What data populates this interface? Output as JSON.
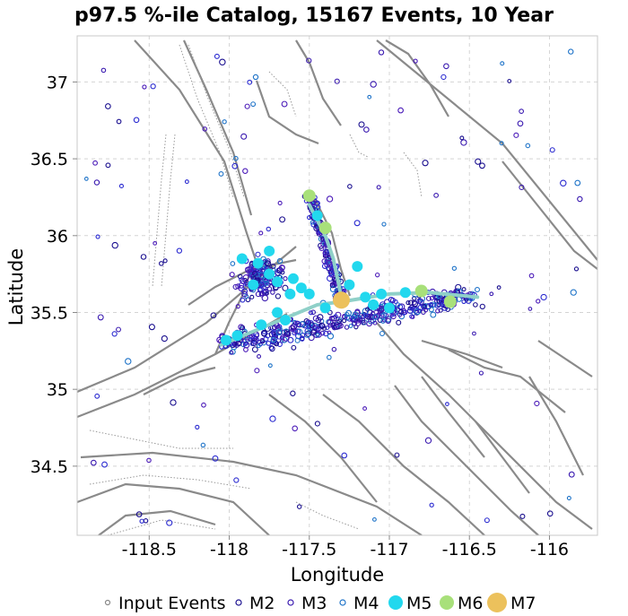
{
  "chart_data": {
    "type": "scatter",
    "title": "p97.5 %-ile Catalog, 15167 Events, 10 Year",
    "xlabel": "Longitude",
    "ylabel": "Latitude",
    "xlim": [
      -118.95,
      -115.7
    ],
    "ylim": [
      34.05,
      37.3
    ],
    "xticks": [
      -118.5,
      -118,
      -117.5,
      -117,
      -116.5,
      -116
    ],
    "xtick_labels": [
      "-118.5",
      "-118",
      "-117.5",
      "-117",
      "-116.5",
      "-116"
    ],
    "yticks": [
      34.5,
      35,
      35.5,
      36,
      36.5,
      37
    ],
    "ytick_labels": [
      "34.5",
      "35",
      "35.5",
      "36",
      "36.5",
      "37"
    ],
    "grid": true,
    "legend_position": "bottom",
    "legend": [
      {
        "label": "Input Events",
        "color": "#888888",
        "marker": "small-open-circle"
      },
      {
        "label": "M2",
        "color": "#1a0f8f",
        "marker": "open-circle"
      },
      {
        "label": "M3",
        "color": "#3a1ab0",
        "marker": "open-circle"
      },
      {
        "label": "M4",
        "color": "#1e73c8",
        "marker": "open-circle"
      },
      {
        "label": "M5",
        "color": "#22d8ee",
        "marker": "filled-circle"
      },
      {
        "label": "M6",
        "color": "#a8e07a",
        "marker": "filled-circle"
      },
      {
        "label": "M7",
        "color": "#ecc15c",
        "marker": "filled-circle"
      }
    ],
    "rupture_trace": {
      "color": "#8fd0c8",
      "segments": [
        [
          [
            -118.05,
            35.29
          ],
          [
            -117.75,
            35.42
          ],
          [
            -117.45,
            35.55
          ],
          [
            -117.3,
            35.57
          ],
          [
            -117.0,
            35.62
          ],
          [
            -116.75,
            35.63
          ],
          [
            -116.45,
            35.6
          ]
        ],
        [
          [
            -117.5,
            36.2
          ],
          [
            -117.45,
            36.1
          ],
          [
            -117.4,
            36.0
          ],
          [
            -117.35,
            35.85
          ],
          [
            -117.3,
            35.6
          ]
        ]
      ]
    },
    "series": [
      {
        "name": "M7",
        "color": "#ecc15c",
        "points": [
          [
            -117.3,
            35.58
          ]
        ]
      },
      {
        "name": "M6",
        "color": "#a8e07a",
        "points": [
          [
            -116.8,
            35.64
          ],
          [
            -116.62,
            35.57
          ],
          [
            -117.4,
            36.05
          ],
          [
            -117.5,
            36.26
          ]
        ]
      },
      {
        "name": "M5",
        "color": "#22d8ee",
        "points": [
          [
            -117.92,
            35.85
          ],
          [
            -117.82,
            35.82
          ],
          [
            -117.75,
            35.75
          ],
          [
            -117.7,
            35.7
          ],
          [
            -117.62,
            35.62
          ],
          [
            -117.55,
            35.66
          ],
          [
            -117.5,
            35.62
          ],
          [
            -117.75,
            35.9
          ],
          [
            -117.2,
            35.8
          ],
          [
            -117.05,
            35.62
          ],
          [
            -116.9,
            35.63
          ],
          [
            -117.1,
            35.55
          ],
          [
            -117.95,
            35.35
          ],
          [
            -117.8,
            35.42
          ],
          [
            -117.65,
            35.45
          ],
          [
            -117.15,
            35.6
          ],
          [
            -117.45,
            36.13
          ],
          [
            -117.85,
            35.68
          ],
          [
            -117.6,
            35.72
          ],
          [
            -117.0,
            35.53
          ],
          [
            -117.25,
            35.68
          ],
          [
            -118.02,
            35.32
          ],
          [
            -117.7,
            35.5
          ],
          [
            -117.4,
            35.53
          ]
        ]
      }
    ]
  }
}
